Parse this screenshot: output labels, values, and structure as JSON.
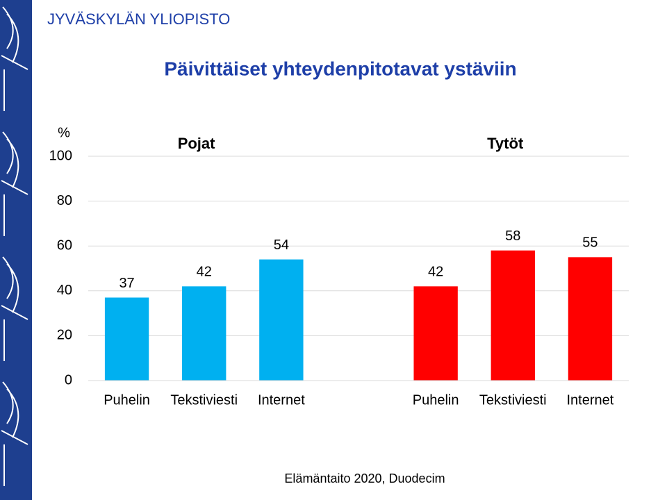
{
  "header": "JYVÄSKYLÄN YLIOPISTO",
  "footer": "Elämäntaito 2020, Duodecim",
  "chart_data": {
    "type": "bar",
    "title": "Päivittäiset yhteydenpitotavat ystäviin",
    "y_label": "%",
    "categories": [
      "Puhelin",
      "Tekstiviesti",
      "Internet"
    ],
    "series": [
      {
        "name": "Pojat",
        "color": "#00b0f0",
        "values": [
          37,
          42,
          54
        ]
      },
      {
        "name": "Tytöt",
        "color": "#ff0000",
        "values": [
          42,
          58,
          55
        ]
      }
    ],
    "ylim": [
      0,
      100
    ],
    "yticks": [
      0,
      20,
      40,
      60,
      80,
      100
    ],
    "grid": true
  }
}
